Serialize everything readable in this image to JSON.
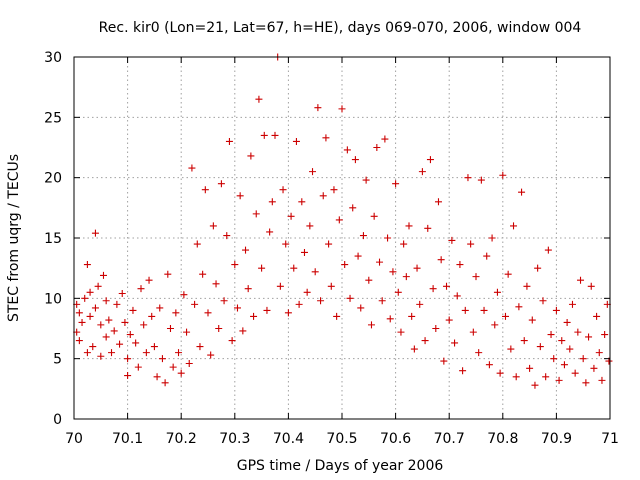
{
  "chart_data": {
    "type": "scatter",
    "title": "Rec. kir0 (Lon=21, Lat=67, h=HE), days 069-070, 2006, window 004",
    "xlabel": "GPS time / Days of year 2006",
    "ylabel": "STEC from uqrg / TECUs",
    "xlim": [
      70,
      71
    ],
    "ylim": [
      0,
      30
    ],
    "xticks": [
      "70",
      "70.1",
      "70.2",
      "70.3",
      "70.4",
      "70.5",
      "70.6",
      "70.7",
      "70.8",
      "70.9",
      "71"
    ],
    "yticks": [
      "0",
      "5",
      "10",
      "15",
      "20",
      "25",
      "30"
    ],
    "grid": true,
    "marker": "plus",
    "color": "#cc0000",
    "series": [
      {
        "points": [
          [
            70.005,
            7.2
          ],
          [
            70.005,
            9.5
          ],
          [
            70.01,
            8.8
          ],
          [
            70.01,
            6.5
          ],
          [
            70.015,
            8.0
          ],
          [
            70.02,
            10.0
          ],
          [
            70.025,
            12.8
          ],
          [
            70.025,
            5.5
          ],
          [
            70.03,
            10.5
          ],
          [
            70.03,
            8.5
          ],
          [
            70.035,
            6.0
          ],
          [
            70.04,
            9.2
          ],
          [
            70.04,
            15.4
          ],
          [
            70.045,
            11.0
          ],
          [
            70.05,
            7.8
          ],
          [
            70.05,
            5.2
          ],
          [
            70.055,
            11.9
          ],
          [
            70.06,
            9.8
          ],
          [
            70.06,
            6.8
          ],
          [
            70.065,
            8.2
          ],
          [
            70.07,
            5.5
          ],
          [
            70.075,
            7.3
          ],
          [
            70.08,
            9.5
          ],
          [
            70.085,
            6.2
          ],
          [
            70.09,
            10.4
          ],
          [
            70.095,
            8.0
          ],
          [
            70.1,
            5.0
          ],
          [
            70.1,
            3.6
          ],
          [
            70.105,
            7.0
          ],
          [
            70.11,
            9.0
          ],
          [
            70.115,
            6.3
          ],
          [
            70.12,
            4.3
          ],
          [
            70.125,
            10.8
          ],
          [
            70.13,
            7.8
          ],
          [
            70.135,
            5.5
          ],
          [
            70.14,
            11.5
          ],
          [
            70.145,
            8.5
          ],
          [
            70.15,
            6.0
          ],
          [
            70.155,
            3.5
          ],
          [
            70.16,
            9.2
          ],
          [
            70.165,
            5.0
          ],
          [
            70.17,
            3.0
          ],
          [
            70.175,
            12.0
          ],
          [
            70.18,
            7.5
          ],
          [
            70.185,
            4.3
          ],
          [
            70.19,
            8.8
          ],
          [
            70.195,
            5.5
          ],
          [
            70.2,
            3.8
          ],
          [
            70.205,
            10.3
          ],
          [
            70.21,
            7.2
          ],
          [
            70.215,
            4.6
          ],
          [
            70.22,
            20.8
          ],
          [
            70.225,
            9.5
          ],
          [
            70.23,
            14.5
          ],
          [
            70.235,
            6.0
          ],
          [
            70.24,
            12.0
          ],
          [
            70.245,
            19.0
          ],
          [
            70.25,
            8.8
          ],
          [
            70.255,
            5.3
          ],
          [
            70.26,
            16.0
          ],
          [
            70.265,
            11.2
          ],
          [
            70.27,
            7.5
          ],
          [
            70.275,
            19.5
          ],
          [
            70.28,
            9.8
          ],
          [
            70.285,
            15.2
          ],
          [
            70.29,
            23.0
          ],
          [
            70.295,
            6.5
          ],
          [
            70.3,
            12.8
          ],
          [
            70.305,
            9.2
          ],
          [
            70.31,
            18.5
          ],
          [
            70.315,
            7.3
          ],
          [
            70.32,
            14.0
          ],
          [
            70.325,
            10.8
          ],
          [
            70.33,
            21.8
          ],
          [
            70.335,
            8.5
          ],
          [
            70.34,
            17.0
          ],
          [
            70.345,
            26.5
          ],
          [
            70.35,
            12.5
          ],
          [
            70.355,
            23.5
          ],
          [
            70.36,
            9.0
          ],
          [
            70.365,
            15.5
          ],
          [
            70.37,
            18.0
          ],
          [
            70.375,
            23.5
          ],
          [
            70.38,
            30.0
          ],
          [
            70.385,
            11.0
          ],
          [
            70.39,
            19.0
          ],
          [
            70.395,
            14.5
          ],
          [
            70.4,
            8.8
          ],
          [
            70.405,
            16.8
          ],
          [
            70.41,
            12.5
          ],
          [
            70.415,
            23.0
          ],
          [
            70.42,
            9.5
          ],
          [
            70.425,
            18.0
          ],
          [
            70.43,
            13.8
          ],
          [
            70.435,
            10.5
          ],
          [
            70.44,
            16.0
          ],
          [
            70.445,
            20.5
          ],
          [
            70.45,
            12.2
          ],
          [
            70.455,
            25.8
          ],
          [
            70.46,
            9.8
          ],
          [
            70.465,
            18.5
          ],
          [
            70.47,
            23.3
          ],
          [
            70.475,
            14.5
          ],
          [
            70.48,
            11.0
          ],
          [
            70.485,
            19.0
          ],
          [
            70.49,
            8.5
          ],
          [
            70.495,
            16.5
          ],
          [
            70.5,
            25.7
          ],
          [
            70.505,
            12.8
          ],
          [
            70.51,
            22.3
          ],
          [
            70.515,
            10.0
          ],
          [
            70.52,
            17.5
          ],
          [
            70.525,
            21.5
          ],
          [
            70.53,
            13.5
          ],
          [
            70.535,
            9.2
          ],
          [
            70.54,
            15.2
          ],
          [
            70.545,
            19.8
          ],
          [
            70.55,
            11.5
          ],
          [
            70.555,
            7.8
          ],
          [
            70.56,
            16.8
          ],
          [
            70.565,
            22.5
          ],
          [
            70.57,
            13.0
          ],
          [
            70.575,
            9.8
          ],
          [
            70.58,
            23.2
          ],
          [
            70.585,
            15.0
          ],
          [
            70.59,
            8.3
          ],
          [
            70.595,
            12.2
          ],
          [
            70.6,
            19.5
          ],
          [
            70.605,
            10.5
          ],
          [
            70.61,
            7.2
          ],
          [
            70.615,
            14.5
          ],
          [
            70.62,
            11.8
          ],
          [
            70.625,
            16.0
          ],
          [
            70.63,
            8.5
          ],
          [
            70.635,
            5.8
          ],
          [
            70.64,
            12.5
          ],
          [
            70.645,
            9.5
          ],
          [
            70.65,
            20.5
          ],
          [
            70.655,
            6.5
          ],
          [
            70.66,
            15.8
          ],
          [
            70.665,
            21.5
          ],
          [
            70.67,
            10.8
          ],
          [
            70.675,
            7.5
          ],
          [
            70.68,
            18.0
          ],
          [
            70.685,
            13.2
          ],
          [
            70.69,
            4.8
          ],
          [
            70.695,
            11.0
          ],
          [
            70.7,
            8.2
          ],
          [
            70.705,
            14.8
          ],
          [
            70.71,
            6.3
          ],
          [
            70.715,
            10.2
          ],
          [
            70.72,
            12.8
          ],
          [
            70.725,
            4.0
          ],
          [
            70.73,
            9.0
          ],
          [
            70.735,
            20.0
          ],
          [
            70.74,
            14.5
          ],
          [
            70.745,
            7.2
          ],
          [
            70.75,
            11.8
          ],
          [
            70.755,
            5.5
          ],
          [
            70.76,
            19.8
          ],
          [
            70.765,
            9.0
          ],
          [
            70.77,
            13.5
          ],
          [
            70.775,
            4.5
          ],
          [
            70.78,
            15.0
          ],
          [
            70.785,
            7.8
          ],
          [
            70.79,
            10.5
          ],
          [
            70.795,
            3.8
          ],
          [
            70.8,
            20.2
          ],
          [
            70.805,
            8.5
          ],
          [
            70.81,
            12.0
          ],
          [
            70.815,
            5.8
          ],
          [
            70.82,
            16.0
          ],
          [
            70.825,
            3.5
          ],
          [
            70.83,
            9.3
          ],
          [
            70.835,
            18.8
          ],
          [
            70.84,
            6.5
          ],
          [
            70.845,
            11.0
          ],
          [
            70.85,
            4.2
          ],
          [
            70.855,
            8.2
          ],
          [
            70.86,
            2.8
          ],
          [
            70.865,
            12.5
          ],
          [
            70.87,
            6.0
          ],
          [
            70.875,
            9.8
          ],
          [
            70.88,
            3.5
          ],
          [
            70.885,
            14.0
          ],
          [
            70.89,
            7.0
          ],
          [
            70.895,
            5.0
          ],
          [
            70.9,
            9.0
          ],
          [
            70.905,
            3.2
          ],
          [
            70.91,
            6.5
          ],
          [
            70.915,
            4.5
          ],
          [
            70.92,
            8.0
          ],
          [
            70.925,
            5.8
          ],
          [
            70.93,
            9.5
          ],
          [
            70.935,
            3.8
          ],
          [
            70.94,
            7.2
          ],
          [
            70.945,
            11.5
          ],
          [
            70.95,
            5.0
          ],
          [
            70.955,
            3.0
          ],
          [
            70.96,
            6.8
          ],
          [
            70.965,
            11.0
          ],
          [
            70.97,
            4.2
          ],
          [
            70.975,
            8.5
          ],
          [
            70.98,
            5.5
          ],
          [
            70.985,
            3.2
          ],
          [
            70.99,
            7.0
          ],
          [
            70.995,
            9.5
          ],
          [
            70.998,
            4.8
          ]
        ]
      }
    ]
  }
}
